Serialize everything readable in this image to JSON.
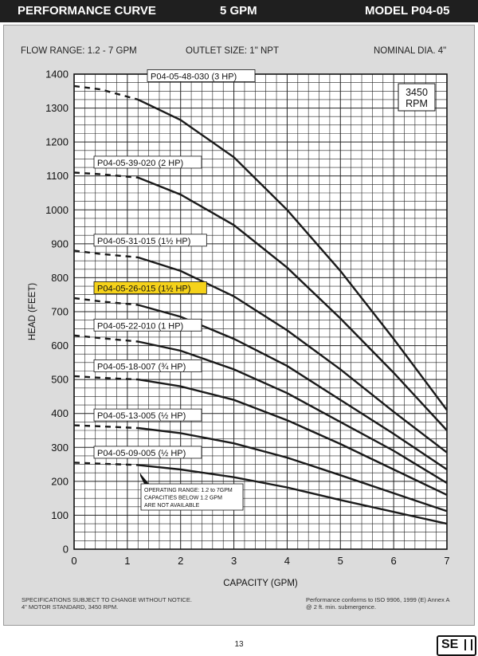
{
  "header": {
    "left": "PERFORMANCE CURVE",
    "center": "5 GPM",
    "right": "MODEL  P04-05"
  },
  "specs": {
    "flow_range": "FLOW RANGE: 1.2 - 7 GPM",
    "outlet": "OUTLET SIZE: 1\" NPT",
    "diameter": "NOMINAL DIA. 4\""
  },
  "rpm_box": {
    "line1": "3450",
    "line2": "RPM"
  },
  "note_lines": [
    "OPERATING RANGE: 1.2 to 7GPM",
    "CAPACITIES BELOW 1.2 GPM",
    "ARE NOT AVAILABLE"
  ],
  "footer": {
    "left_line1": "SPECIFICATIONS SUBJECT TO CHANGE WITHOUT NOTICE.",
    "left_line2": "4\" MOTOR STANDARD, 3450 RPM.",
    "right_line1": "Performance conforms to ISO 9906, 1999 (E) Annex A",
    "right_line2": "@ 2 ft. min. submergence.",
    "page": "13"
  },
  "logo": {
    "text": "SE"
  },
  "colors": {
    "highlight": "#f5d21a",
    "curve": "#1a1a1a",
    "grid": "#222222",
    "panel": "#dcdcdc",
    "header": "#1f1f1f"
  },
  "chart_data": {
    "type": "line",
    "xlabel": "CAPACITY (GPM)",
    "ylabel": "HEAD (FEET)",
    "xlim": [
      0,
      7
    ],
    "ylim": [
      0,
      1400
    ],
    "x_ticks": [
      "0",
      "1",
      "2",
      "3",
      "4",
      "5",
      "6",
      "7"
    ],
    "y_ticks": [
      "0",
      "100",
      "200",
      "300",
      "400",
      "500",
      "600",
      "700",
      "800",
      "900",
      "1000",
      "1100",
      "1200",
      "1300",
      "1400"
    ],
    "grid": true,
    "dashed_below_x": 1.2,
    "highlighted_series": "P04-05-26-015 (1½ HP)",
    "series": [
      {
        "name": "P04-05-48-030 (3 HP)",
        "x": [
          0,
          0.5,
          1.2,
          2,
          3,
          4,
          5,
          6,
          7
        ],
        "y": [
          1365,
          1355,
          1325,
          1265,
          1155,
          1000,
          820,
          620,
          410
        ]
      },
      {
        "name": "P04-05-39-020 (2 HP)",
        "x": [
          0,
          0.5,
          1.2,
          2,
          3,
          4,
          5,
          6,
          7
        ],
        "y": [
          1110,
          1105,
          1095,
          1045,
          955,
          830,
          680,
          520,
          350
        ]
      },
      {
        "name": "P04-05-31-015 (1½ HP)",
        "x": [
          0,
          0.5,
          1.2,
          2,
          3,
          4,
          5,
          6,
          7
        ],
        "y": [
          880,
          870,
          860,
          820,
          745,
          645,
          530,
          405,
          285
        ]
      },
      {
        "name": "P04-05-26-015 (1½ HP)",
        "x": [
          0,
          0.5,
          1.2,
          2,
          3,
          4,
          5,
          6,
          7
        ],
        "y": [
          740,
          730,
          720,
          685,
          620,
          540,
          440,
          340,
          235
        ]
      },
      {
        "name": "P04-05-22-010 (1 HP)",
        "x": [
          0,
          0.5,
          1.2,
          2,
          3,
          4,
          5,
          6,
          7
        ],
        "y": [
          630,
          622,
          612,
          585,
          530,
          460,
          375,
          290,
          195
        ]
      },
      {
        "name": "P04-05-18-007 (¾ HP)",
        "x": [
          0,
          0.5,
          1.2,
          2,
          3,
          4,
          5,
          6,
          7
        ],
        "y": [
          510,
          505,
          500,
          480,
          440,
          380,
          310,
          235,
          160
        ]
      },
      {
        "name": "P04-05-13-005 (½ HP)",
        "x": [
          0,
          0.5,
          1.2,
          2,
          3,
          4,
          5,
          6,
          7
        ],
        "y": [
          365,
          362,
          357,
          342,
          312,
          270,
          218,
          165,
          112
        ]
      },
      {
        "name": "P04-05-09-005 (½ HP)",
        "x": [
          0,
          0.5,
          1.2,
          2,
          3,
          4,
          5,
          6,
          7
        ],
        "y": [
          255,
          252,
          248,
          235,
          212,
          182,
          145,
          110,
          75
        ]
      }
    ]
  }
}
